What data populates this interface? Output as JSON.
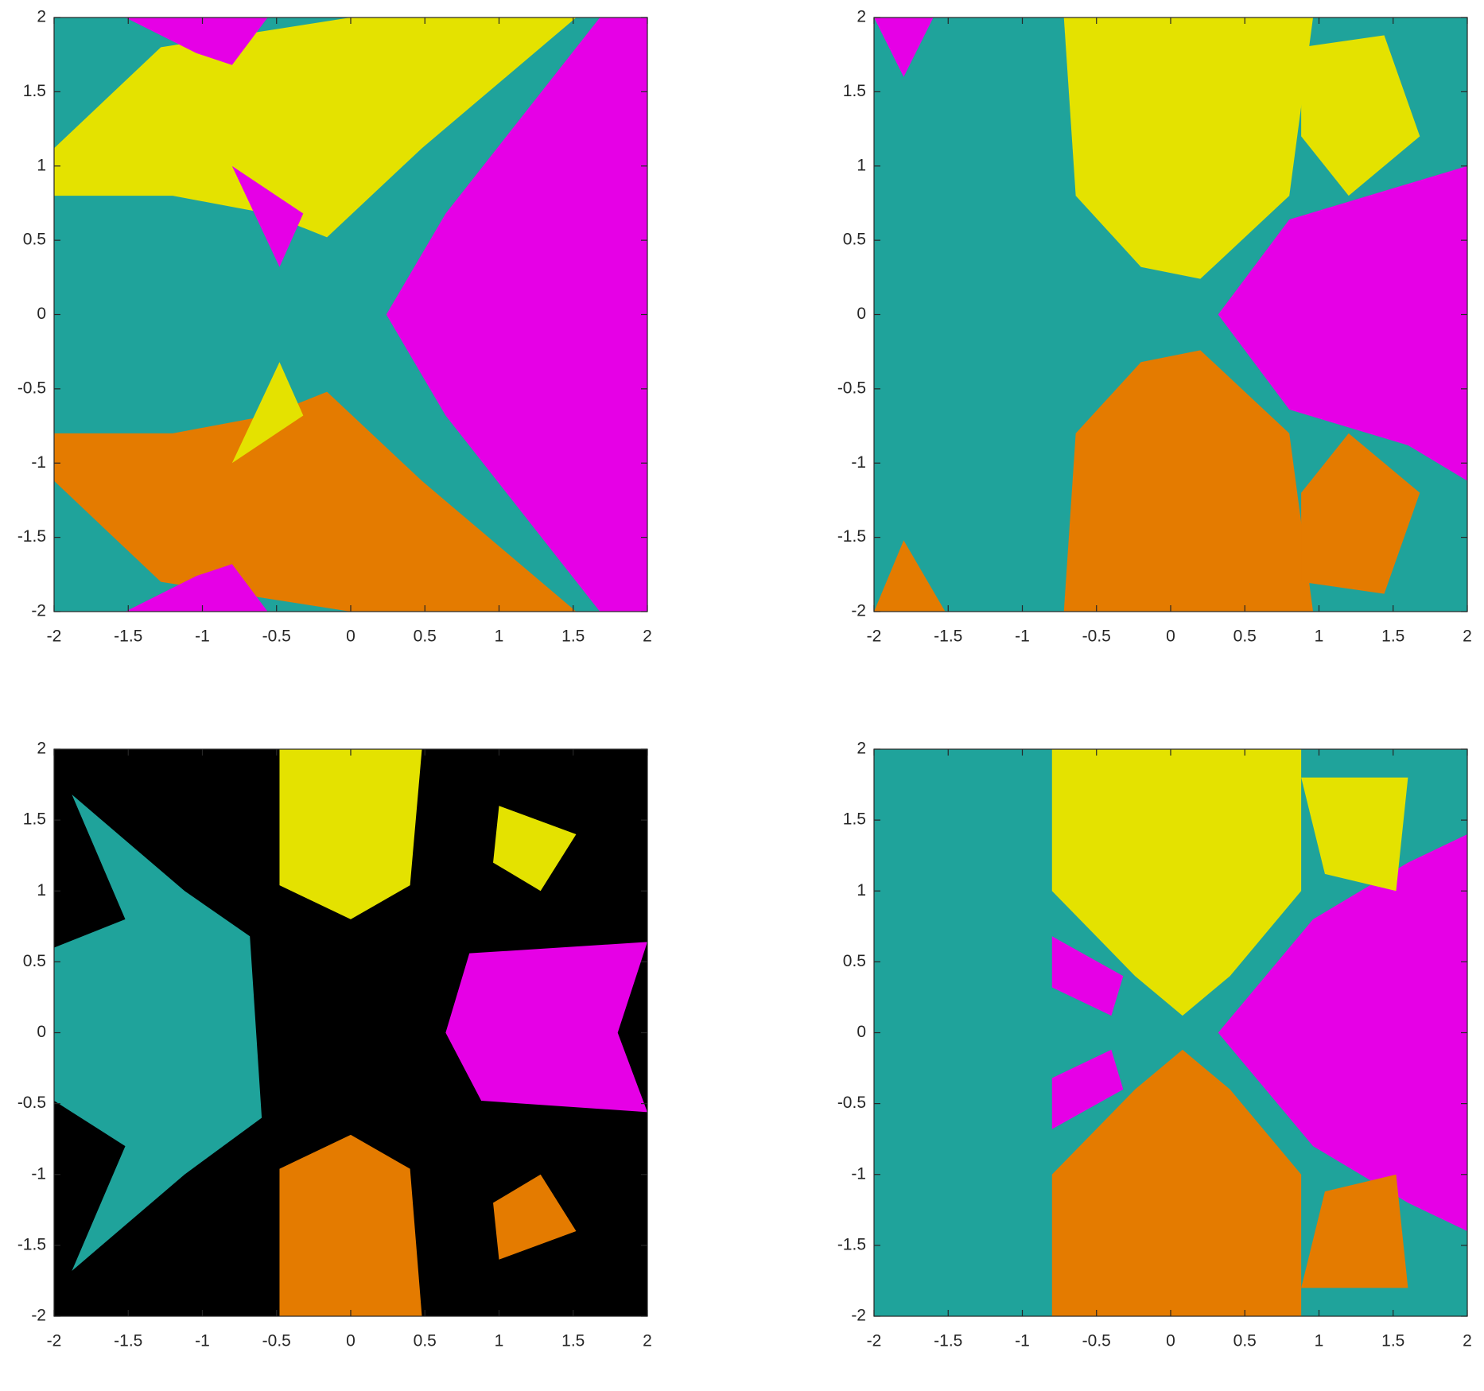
{
  "chart_data": [
    {
      "type": "image",
      "xlim": [
        -2,
        2
      ],
      "ylim": [
        -2,
        2
      ],
      "xticks": [
        -2,
        -1.5,
        -1,
        -0.5,
        0,
        0.5,
        1,
        1.5,
        2
      ],
      "yticks": [
        -2,
        -1.5,
        -1,
        -0.5,
        0,
        0.5,
        1,
        1.5,
        2
      ],
      "colors": [
        "#1fa39b",
        "#e4e200",
        "#e600e6",
        "#e47b00",
        "#000000"
      ]
    },
    {
      "type": "image",
      "xlim": [
        -2,
        2
      ],
      "ylim": [
        -2,
        2
      ],
      "xticks": [
        -2,
        -1.5,
        -1,
        -0.5,
        0,
        0.5,
        1,
        1.5,
        2
      ],
      "yticks": [
        -2,
        -1.5,
        -1,
        -0.5,
        0,
        0.5,
        1,
        1.5,
        2
      ],
      "colors": [
        "#1fa39b",
        "#e4e200",
        "#e600e6",
        "#e47b00",
        "#000000"
      ]
    },
    {
      "type": "image",
      "xlim": [
        -2,
        2
      ],
      "ylim": [
        -2,
        2
      ],
      "xticks": [
        -2,
        -1.5,
        -1,
        -0.5,
        0,
        0.5,
        1,
        1.5,
        2
      ],
      "yticks": [
        -2,
        -1.5,
        -1,
        -0.5,
        0,
        0.5,
        1,
        1.5,
        2
      ],
      "colors": [
        "#1fa39b",
        "#e4e200",
        "#e600e6",
        "#e47b00",
        "#000000"
      ]
    },
    {
      "type": "image",
      "xlim": [
        -2,
        2
      ],
      "ylim": [
        -2,
        2
      ],
      "xticks": [
        -2,
        -1.5,
        -1,
        -0.5,
        0,
        0.5,
        1,
        1.5,
        2
      ],
      "yticks": [
        -2,
        -1.5,
        -1,
        -0.5,
        0,
        0.5,
        1,
        1.5,
        2
      ],
      "colors": [
        "#1fa39b",
        "#e4e200",
        "#e600e6",
        "#e47b00",
        "#000000"
      ]
    }
  ]
}
